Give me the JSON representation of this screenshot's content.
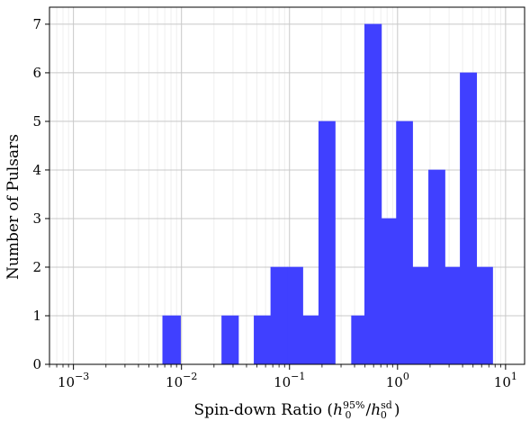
{
  "chart_data": {
    "type": "bar",
    "title": "",
    "xlabel_parts": {
      "prefix": "Spin-down Ratio (",
      "num_base": "h",
      "num_sub": "0",
      "num_sup": "95%",
      "divider": "/",
      "den_base": "h",
      "den_sub": "0",
      "den_sup": "sd",
      "suffix": ")"
    },
    "ylabel": "Number of Pulsars",
    "x_scale": "log",
    "xlim": [
      0.0006,
      15
    ],
    "ylim": [
      0,
      7.35
    ],
    "x_ticks": [
      {
        "value": 0.001,
        "base": "10",
        "exp": "−3"
      },
      {
        "value": 0.01,
        "base": "10",
        "exp": "−2"
      },
      {
        "value": 0.1,
        "base": "10",
        "exp": "−1"
      },
      {
        "value": 1,
        "base": "10",
        "exp": "0"
      },
      {
        "value": 10,
        "base": "10",
        "exp": "1"
      }
    ],
    "y_ticks": [
      "0",
      "1",
      "2",
      "3",
      "4",
      "5",
      "6",
      "7"
    ],
    "grid": true,
    "bar_color": "#4040ff",
    "bins": [
      {
        "x0": 0.0067,
        "x1": 0.0098,
        "value": 1
      },
      {
        "x0": 0.0236,
        "x1": 0.0337,
        "value": 1
      },
      {
        "x0": 0.047,
        "x1": 0.0671,
        "value": 1
      },
      {
        "x0": 0.0671,
        "x1": 0.0958,
        "value": 2
      },
      {
        "x0": 0.0958,
        "x1": 0.1329,
        "value": 2
      },
      {
        "x0": 0.1329,
        "x1": 0.1865,
        "value": 1
      },
      {
        "x0": 0.1865,
        "x1": 0.2648,
        "value": 5
      },
      {
        "x0": 0.2648,
        "x1": 0.3747,
        "value": 0
      },
      {
        "x0": 0.3747,
        "x1": 0.4963,
        "value": 1
      },
      {
        "x0": 0.4963,
        "x1": 0.71,
        "value": 7
      },
      {
        "x0": 0.71,
        "x1": 0.976,
        "value": 3
      },
      {
        "x0": 0.976,
        "x1": 1.38,
        "value": 5
      },
      {
        "x0": 1.38,
        "x1": 1.94,
        "value": 2
      },
      {
        "x0": 1.94,
        "x1": 2.75,
        "value": 4
      },
      {
        "x0": 2.75,
        "x1": 3.8,
        "value": 2
      },
      {
        "x0": 3.8,
        "x1": 5.4,
        "value": 6
      },
      {
        "x0": 5.4,
        "x1": 7.6,
        "value": 2
      }
    ]
  }
}
